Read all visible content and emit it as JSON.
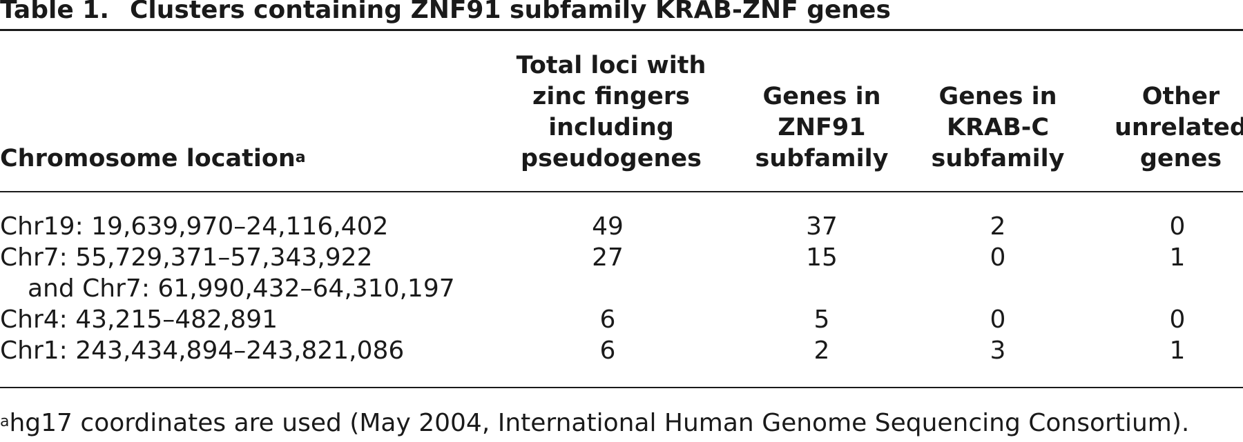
{
  "caption": {
    "label": "Table 1.",
    "title": "Clusters containing ZNF91 subfamily KRAB-ZNF genes"
  },
  "headers": {
    "location": "Chromosome location",
    "location_note_mark": "a",
    "loci": [
      "Total loci with",
      "zinc fingers",
      "including",
      "pseudogenes"
    ],
    "znf91": [
      "Genes in",
      "ZNF91",
      "subfamily"
    ],
    "krabc": [
      "Genes in",
      "KRAB-C",
      "subfamily"
    ],
    "other": [
      "Other",
      "unrelated",
      "genes"
    ]
  },
  "rows": [
    {
      "location": "Chr19: 19,639,970–24,116,402",
      "loci": "49",
      "znf91": "37",
      "krabc": "2",
      "other": "0"
    },
    {
      "location": "Chr7: 55,729,371–57,343,922",
      "location_cont": "and Chr7: 61,990,432–64,310,197",
      "loci": "27",
      "znf91": "15",
      "krabc": "0",
      "other": "1"
    },
    {
      "location": "Chr4: 43,215–482,891",
      "loci": "6",
      "znf91": "5",
      "krabc": "0",
      "other": "0"
    },
    {
      "location": "Chr1: 243,434,894–243,821,086",
      "loci": "6",
      "znf91": "2",
      "krabc": "3",
      "other": "1"
    }
  ],
  "footnote": {
    "mark": "a",
    "text": "hg17 coordinates are used (May 2004, International Human Genome Sequencing Consortium)."
  }
}
